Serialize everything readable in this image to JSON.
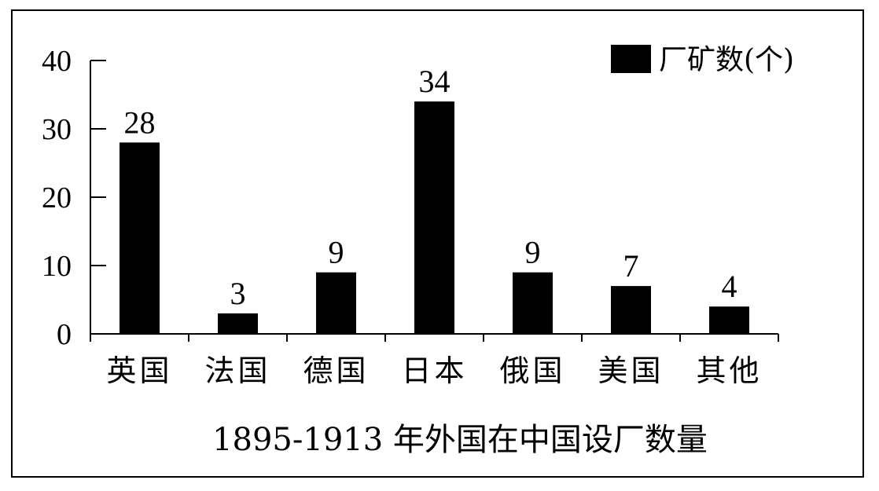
{
  "chart_data": {
    "type": "bar",
    "title": "1895-1913 年外国在中国设厂数量",
    "categories": [
      "英国",
      "法国",
      "德国",
      "日本",
      "俄国",
      "美国",
      "其他"
    ],
    "series": [
      {
        "name": "厂矿数(个)",
        "values": [
          28,
          3,
          9,
          34,
          9,
          7,
          4
        ],
        "color": "#000000"
      }
    ],
    "ylim": [
      0,
      40
    ],
    "yticks": [
      0,
      10,
      20,
      30,
      40
    ],
    "grid": false,
    "legend": "top-right"
  }
}
